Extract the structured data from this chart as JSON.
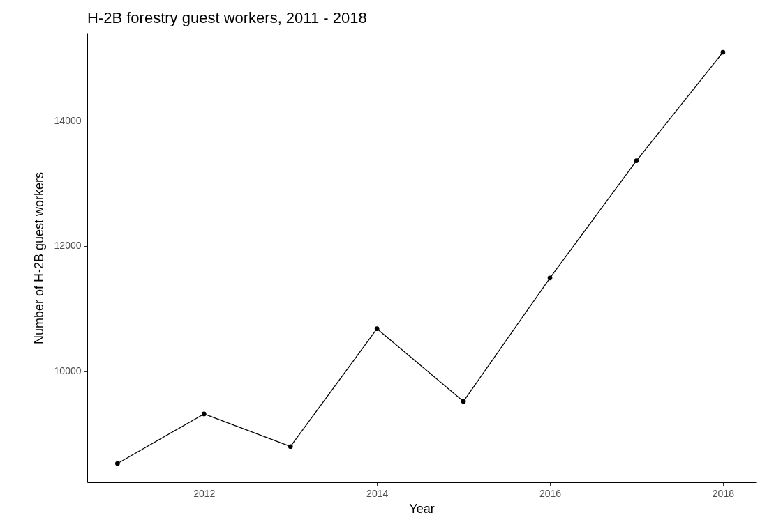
{
  "chart_data": {
    "type": "line",
    "title": "H-2B forestry guest workers, 2011 - 2018",
    "xlabel": "Year",
    "ylabel": "Number of H-2B guest workers",
    "x": [
      2011,
      2012,
      2013,
      2014,
      2015,
      2016,
      2017,
      2018
    ],
    "series": [
      {
        "color": "#000000",
        "values": [
          8530,
          9320,
          8800,
          10680,
          9520,
          11490,
          13360,
          15090
        ]
      }
    ],
    "xlim": [
      2010.65,
      2018.38
    ],
    "xticks": [
      2012,
      2014,
      2016,
      2018
    ],
    "ylim": [
      8230,
      15390
    ],
    "yticks": [
      10000,
      12000,
      14000
    ],
    "grid": false,
    "marker": "circle",
    "line_style": "solid"
  }
}
